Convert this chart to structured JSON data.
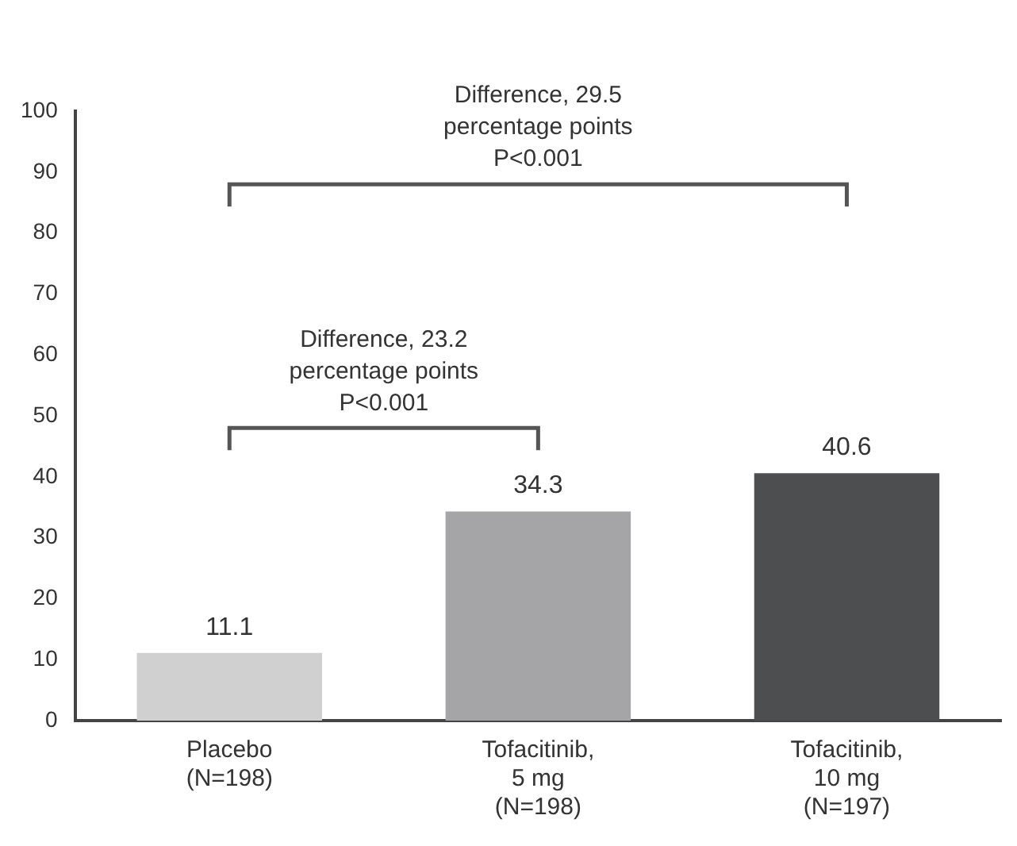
{
  "chart_data": {
    "type": "bar",
    "categories": [
      "Placebo\n(N=198)",
      "Tofacitinib,\n5 mg\n(N=198)",
      "Tofacitinib,\n10 mg\n(N=197)"
    ],
    "values": [
      11.1,
      34.3,
      40.6
    ],
    "colors": [
      "#d0d0d0",
      "#a5a5a7",
      "#4d4e50"
    ],
    "ylim": [
      0,
      100
    ],
    "yticks": [
      0,
      10,
      20,
      30,
      40,
      50,
      60,
      70,
      80,
      90,
      100
    ],
    "grid": false,
    "legend": false,
    "data_labels": true,
    "annotations": [
      "Difference, 23.2\npercentage points\nP<0.001",
      "Difference, 29.5\npercentage points\nP<0.001"
    ]
  }
}
